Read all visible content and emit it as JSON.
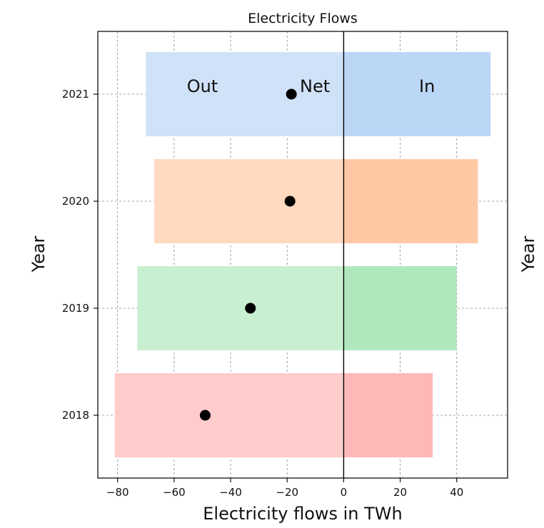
{
  "chart_data": {
    "type": "bar",
    "title": "Electricity Flows",
    "xlabel": "Electricity flows in TWh",
    "ylabel_left": "Year",
    "ylabel_right": "Year",
    "xlim": [
      -87,
      58
    ],
    "xticks": [
      -80,
      -60,
      -40,
      -20,
      0,
      20,
      40
    ],
    "xtick_labels": [
      "−80",
      "−60",
      "−40",
      "−20",
      "0",
      "20",
      "40"
    ],
    "categories": [
      "2018",
      "2019",
      "2020",
      "2021"
    ],
    "grid": true,
    "zero_line": true,
    "series": [
      {
        "name": "Out",
        "values": [
          -81,
          -73,
          -67,
          -70
        ]
      },
      {
        "name": "In",
        "values": [
          31.5,
          40,
          47.5,
          52
        ]
      },
      {
        "name": "Net",
        "values": [
          -49,
          -33,
          -19,
          -18.5
        ]
      }
    ],
    "colors": {
      "2018": {
        "out": "#ffcccc",
        "in": "#ffb8b8"
      },
      "2019": {
        "out": "#c8efd0",
        "in": "#b0e8be"
      },
      "2020": {
        "out": "#ffd9c0",
        "in": "#ffc8a4"
      },
      "2021": {
        "out": "#d0e2f8",
        "in": "#bcd6f6"
      }
    },
    "net_marker_color": "#000000",
    "annotations": [
      {
        "text": "Out",
        "year": "2021"
      },
      {
        "text": "Net",
        "year": "2021"
      },
      {
        "text": "In",
        "year": "2021"
      }
    ]
  }
}
